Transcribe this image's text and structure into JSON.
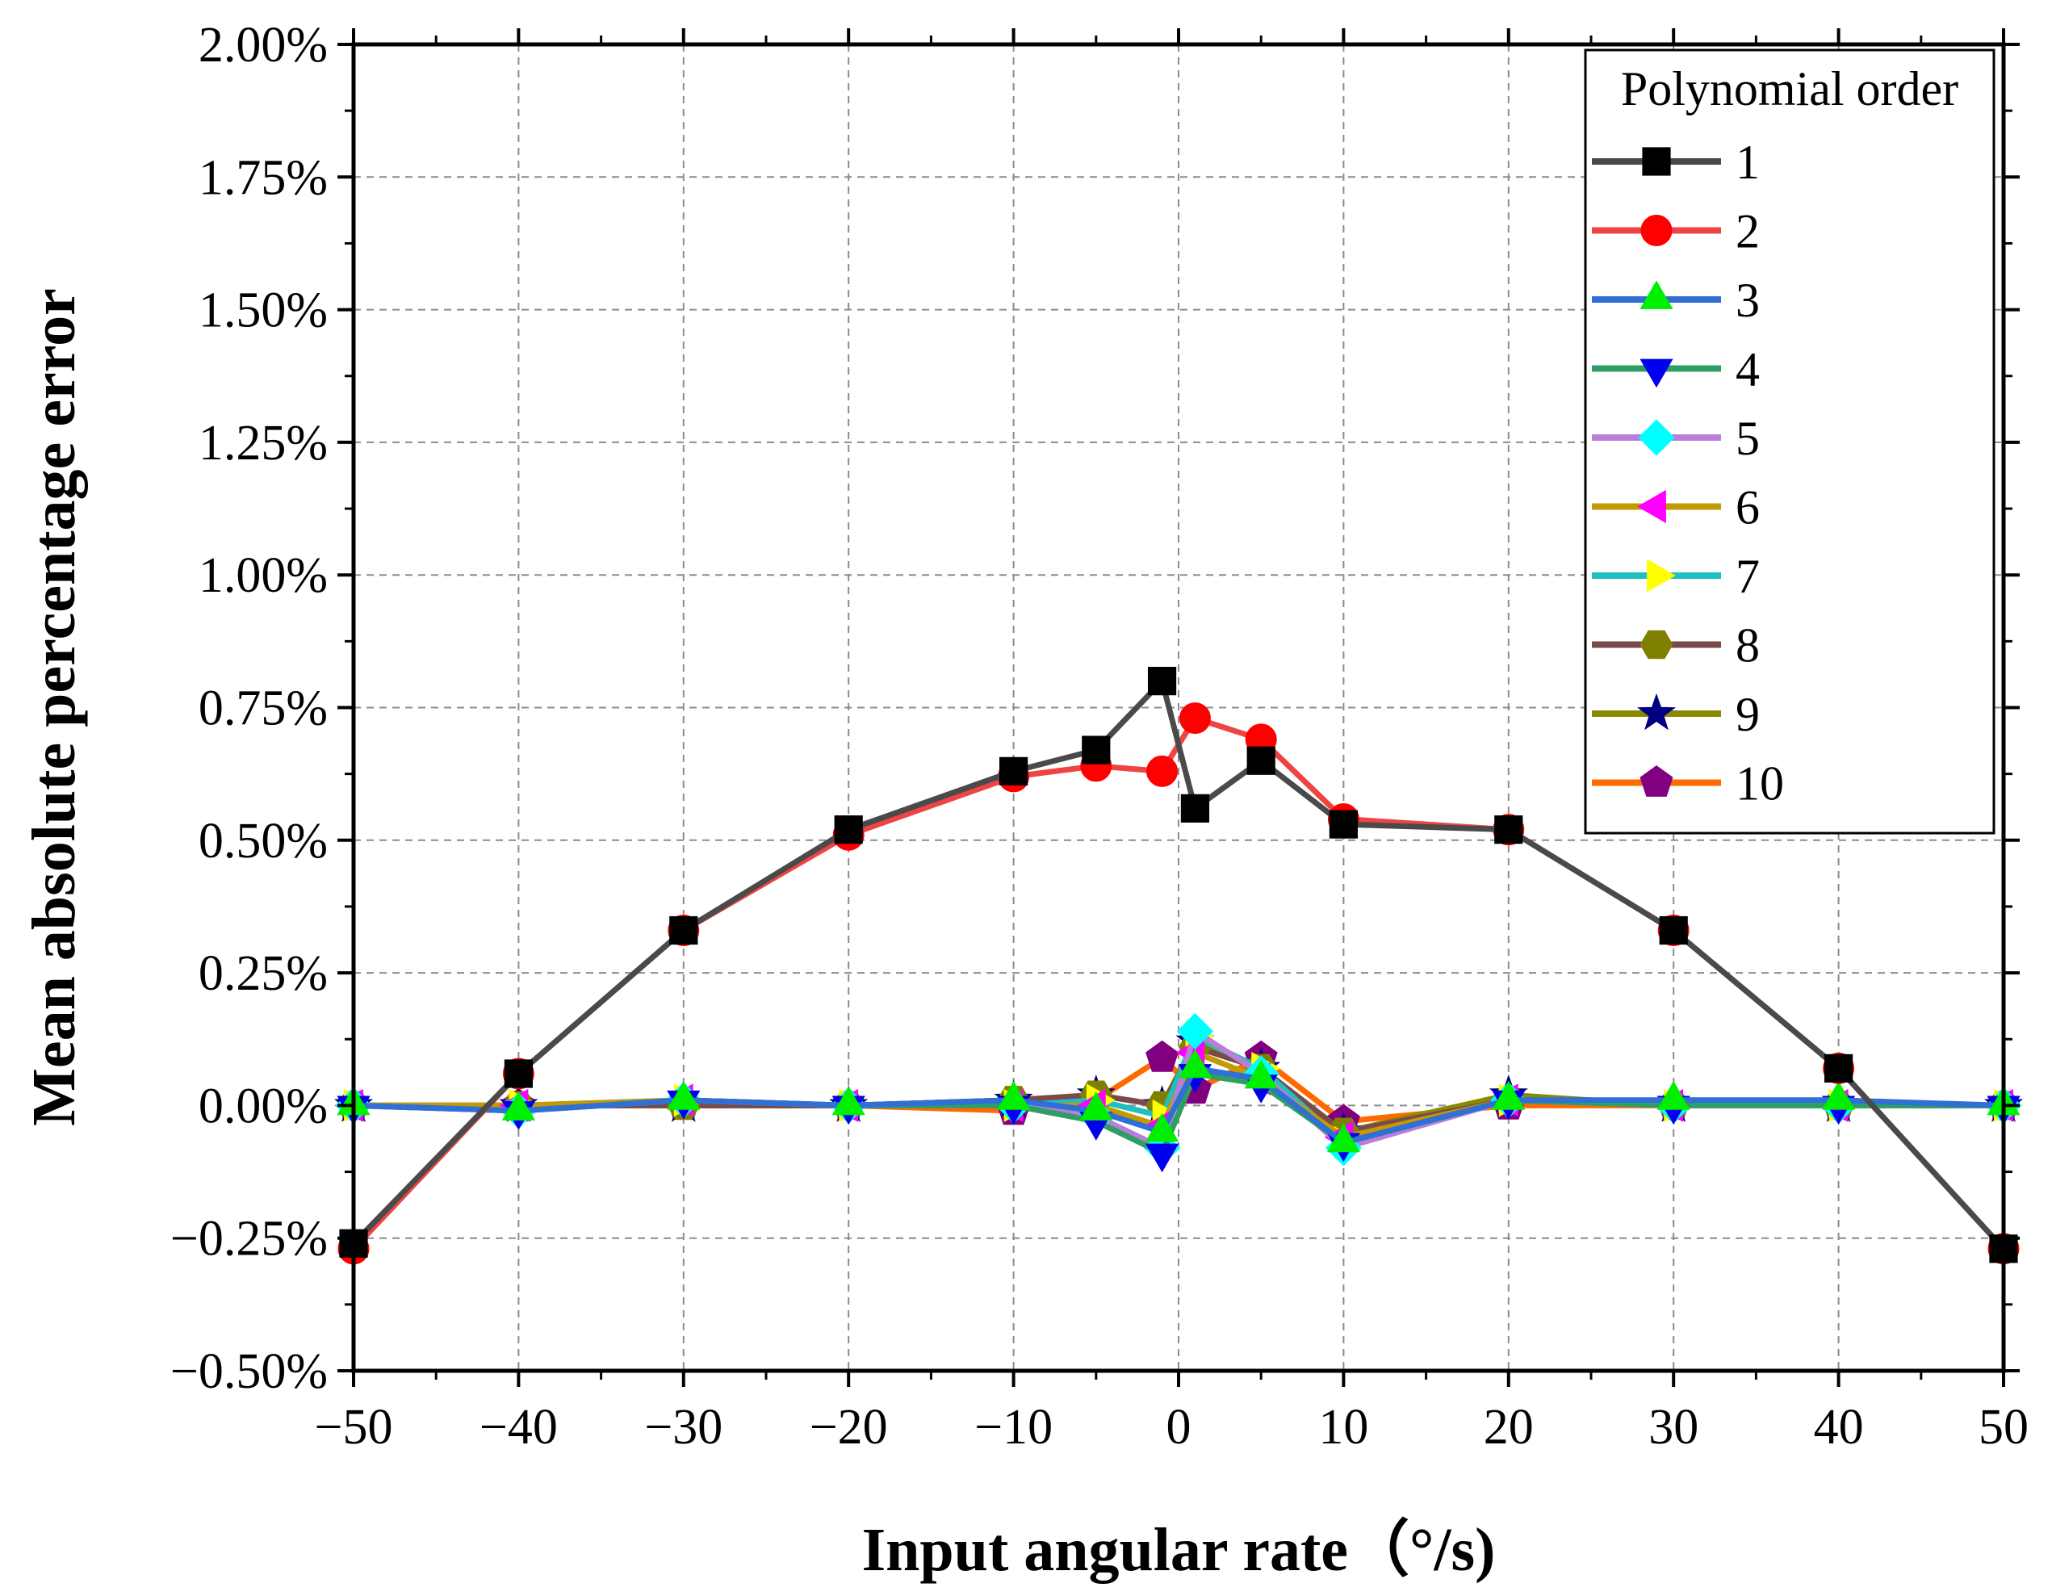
{
  "chart_data": {
    "type": "line",
    "title": "",
    "xlabel": "Input angular rate（°/s)",
    "ylabel": "Mean absolute percentage error",
    "xlim": [
      -50,
      50
    ],
    "ylim": [
      -0.5,
      2.0
    ],
    "x_ticks": [
      -50,
      -40,
      -30,
      -20,
      -10,
      0,
      10,
      20,
      30,
      40,
      50
    ],
    "x_tick_labels": [
      "−50",
      "−40",
      "−30",
      "−20",
      "−10",
      "0",
      "10",
      "20",
      "30",
      "40",
      "50"
    ],
    "y_ticks": [
      -0.5,
      -0.25,
      0,
      0.25,
      0.5,
      0.75,
      1.0,
      1.25,
      1.5,
      1.75,
      2.0
    ],
    "y_tick_labels": [
      "−0.50%",
      "−0.25%",
      "0.00%",
      "0.25%",
      "0.50%",
      "0.75%",
      "1.00%",
      "1.25%",
      "1.50%",
      "1.75%",
      "2.00%"
    ],
    "grid": true,
    "legend_title": "Polynomial order",
    "legend_position": "top-right",
    "x": [
      -50,
      -40,
      -30,
      -20,
      -10,
      -5,
      -1,
      1,
      5,
      10,
      20,
      30,
      40,
      50
    ],
    "series": [
      {
        "name": "1",
        "line_color": "#4a4a4a",
        "marker": "square",
        "marker_color": "#000000",
        "values": [
          -0.26,
          0.06,
          0.33,
          0.52,
          0.63,
          0.67,
          0.8,
          0.56,
          0.65,
          0.53,
          0.52,
          0.33,
          0.07,
          -0.27
        ]
      },
      {
        "name": "2",
        "line_color": "#ee4444",
        "marker": "circle",
        "marker_color": "#ff0000",
        "values": [
          -0.27,
          0.06,
          0.33,
          0.51,
          0.62,
          0.64,
          0.63,
          0.73,
          0.69,
          0.54,
          0.52,
          0.33,
          0.07,
          -0.27
        ]
      },
      {
        "name": "3",
        "line_color": "#2f6fd6",
        "marker": "triangle-up",
        "marker_color": "#00ee00",
        "values": [
          0.0,
          -0.01,
          0.01,
          0.0,
          0.01,
          -0.01,
          -0.05,
          0.07,
          0.05,
          -0.07,
          0.01,
          0.01,
          0.01,
          0.0
        ]
      },
      {
        "name": "4",
        "line_color": "#2e9e64",
        "marker": "triangle-down",
        "marker_color": "#0000ee",
        "values": [
          0.0,
          -0.01,
          0.01,
          0.0,
          0.0,
          -0.03,
          -0.09,
          0.06,
          0.04,
          -0.07,
          0.01,
          0.0,
          0.0,
          0.0
        ]
      },
      {
        "name": "5",
        "line_color": "#b77fd8",
        "marker": "diamond",
        "marker_color": "#00ffff",
        "values": [
          0.0,
          -0.01,
          0.01,
          0.0,
          0.0,
          -0.02,
          -0.08,
          0.14,
          0.06,
          -0.08,
          0.01,
          0.0,
          0.0,
          0.0
        ]
      },
      {
        "name": "6",
        "line_color": "#c49a00",
        "marker": "triangle-left",
        "marker_color": "#ff00ff",
        "values": [
          0.0,
          0.0,
          0.01,
          0.0,
          0.0,
          0.0,
          -0.04,
          0.1,
          0.05,
          -0.06,
          0.01,
          0.0,
          0.0,
          0.0
        ]
      },
      {
        "name": "7",
        "line_color": "#1fbfbf",
        "marker": "triangle-right",
        "marker_color": "#ffff00",
        "values": [
          0.0,
          0.0,
          0.01,
          0.0,
          0.0,
          0.01,
          -0.02,
          0.13,
          0.07,
          -0.07,
          0.01,
          0.0,
          0.0,
          0.0
        ]
      },
      {
        "name": "8",
        "line_color": "#7a4a4a",
        "marker": "hexagon",
        "marker_color": "#808000",
        "values": [
          0.0,
          0.0,
          0.0,
          0.0,
          0.01,
          0.02,
          0.0,
          0.11,
          0.07,
          -0.05,
          0.01,
          0.0,
          0.0,
          0.0
        ]
      },
      {
        "name": "9",
        "line_color": "#8a8a00",
        "marker": "star",
        "marker_color": "#000080",
        "values": [
          0.0,
          0.0,
          0.0,
          0.0,
          0.01,
          0.02,
          0.0,
          0.12,
          0.07,
          -0.05,
          0.02,
          0.0,
          0.0,
          0.0
        ]
      },
      {
        "name": "10",
        "line_color": "#ff6a00",
        "marker": "pentagon",
        "marker_color": "#800080",
        "values": [
          0.0,
          0.0,
          0.0,
          0.0,
          -0.01,
          0.01,
          0.09,
          0.03,
          0.09,
          -0.03,
          0.0,
          0.0,
          0.0,
          0.0
        ]
      }
    ]
  }
}
